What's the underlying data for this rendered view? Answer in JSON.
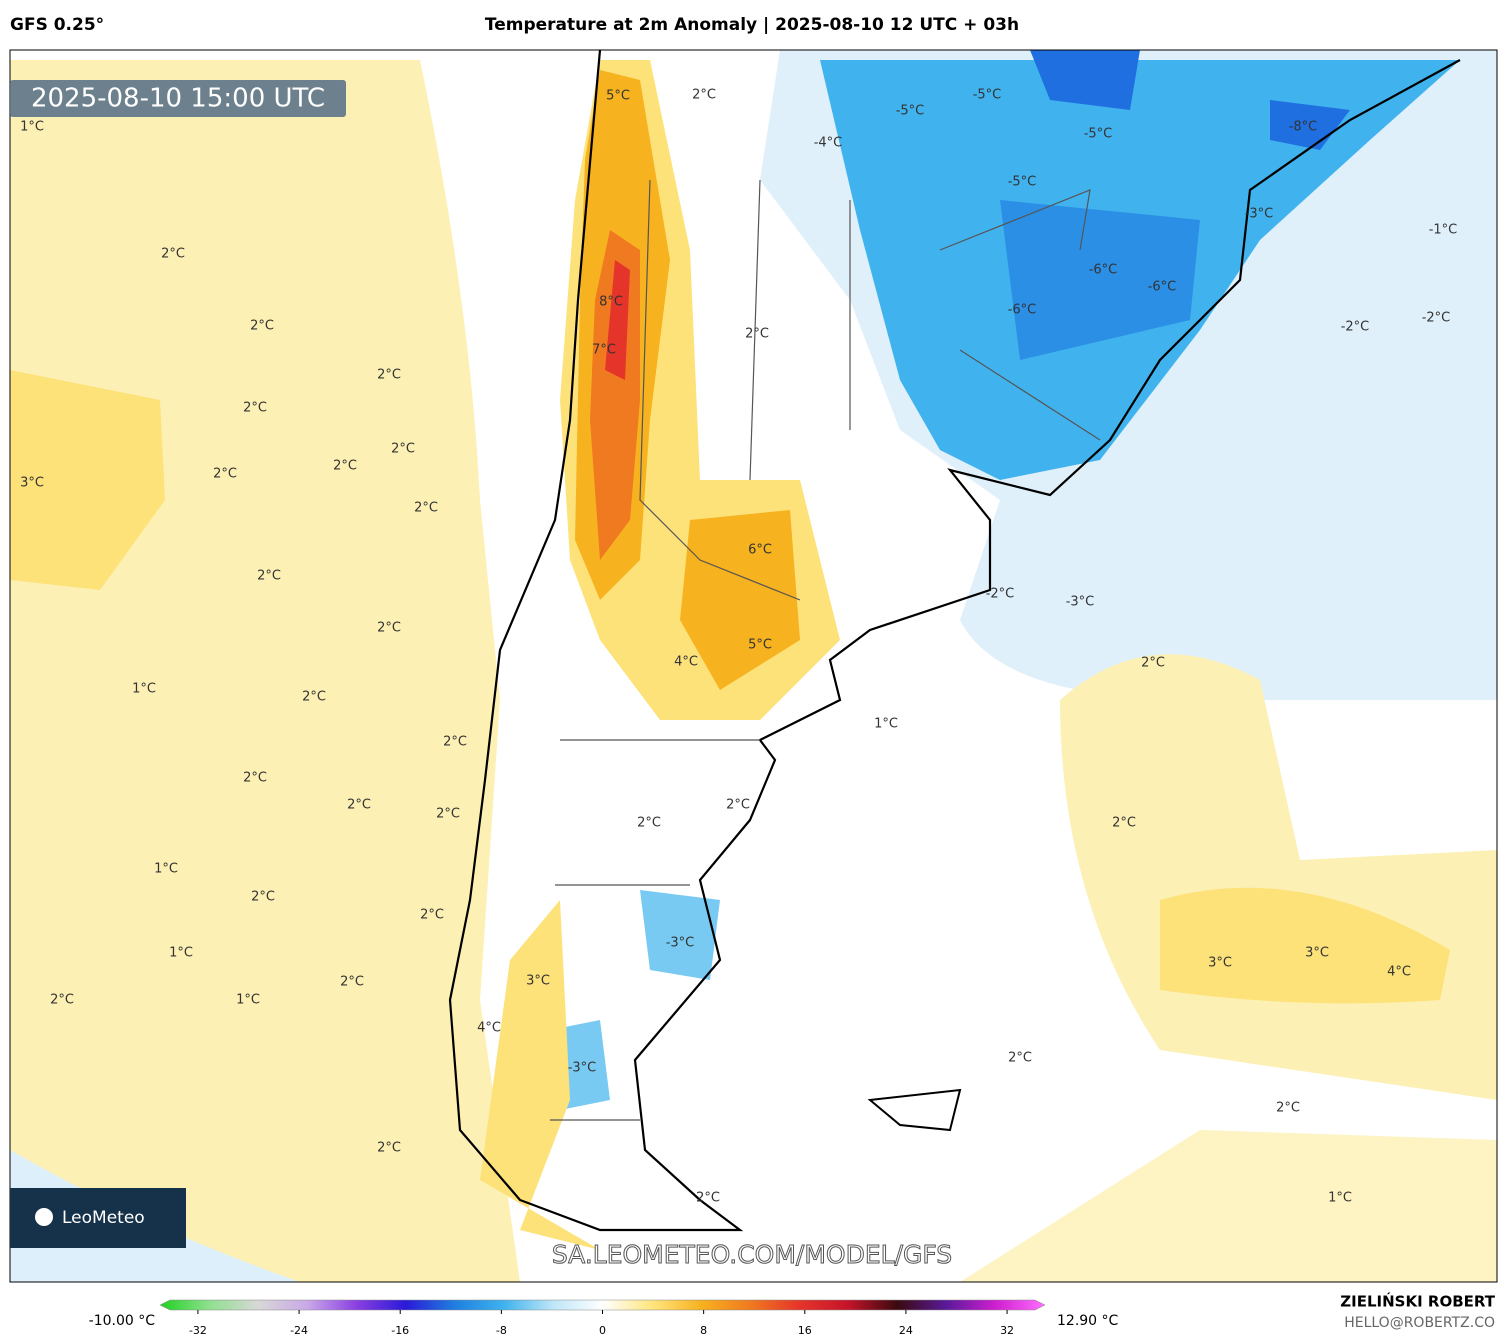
{
  "header": {
    "model": "GFS 0.25°",
    "title": "Temperature at 2m Anomaly | 2025-08-10 12 UTC + 03h"
  },
  "timestamp": "2025-08-10 15:00 UTC",
  "watermark": "SA.LEOMETEO.COM/MODEL/GFS",
  "logo": "LeoMeteo",
  "credits": {
    "author": "ZIELIŃSKI ROBERT",
    "email": "HELLO@ROBERTZ.CO"
  },
  "colorbar": {
    "min_label": "-10.00 °C",
    "max_label": "12.90 °C",
    "lim": [
      -35,
      35
    ],
    "ticks": [
      -32,
      -24,
      -16,
      -8,
      0,
      8,
      16,
      24,
      32
    ],
    "colors": [
      "#1fd11f",
      "#8ee08e",
      "#d8d8d8",
      "#c9a8e8",
      "#8a3fe0",
      "#2a1ad8",
      "#1f7fe0",
      "#3fb3ee",
      "#bfe6f7",
      "#ffffff",
      "#ffe680",
      "#f7b21f",
      "#f07a1f",
      "#e5352a",
      "#c4142a",
      "#3a0a10",
      "#5a1a9a",
      "#d01fd0",
      "#ff6fff"
    ]
  },
  "labels": [
    "5°C",
    "2°C",
    "-5°C",
    "-5°C",
    "-4°C",
    "-5°C",
    "-8°C",
    "-5°C",
    "-3°C",
    "-1°C",
    "-6°C",
    "-6°C",
    "-6°C",
    "-2°C",
    "-2°C",
    "1°C",
    "2°C",
    "2°C",
    "8°C",
    "7°C",
    "2°C",
    "2°C",
    "2°C",
    "2°C",
    "2°C",
    "2°C",
    "3°C",
    "2°C",
    "6°C",
    "2°C",
    "-2°C",
    "-3°C",
    "2°C",
    "5°C",
    "4°C",
    "2°C",
    "1°C",
    "2°C",
    "1°C",
    "2°C",
    "2°C",
    "2°C",
    "2°C",
    "2°C",
    "2°C",
    "2°C",
    "1°C",
    "2°C",
    "2°C",
    "-3°C",
    "1°C",
    "3°C",
    "3°C",
    "4°C",
    "2°C",
    "3°C",
    "2°C",
    "1°C",
    "4°C",
    "-3°C",
    "2°C",
    "2°C",
    "2°C",
    "2°C",
    "1°C"
  ]
}
